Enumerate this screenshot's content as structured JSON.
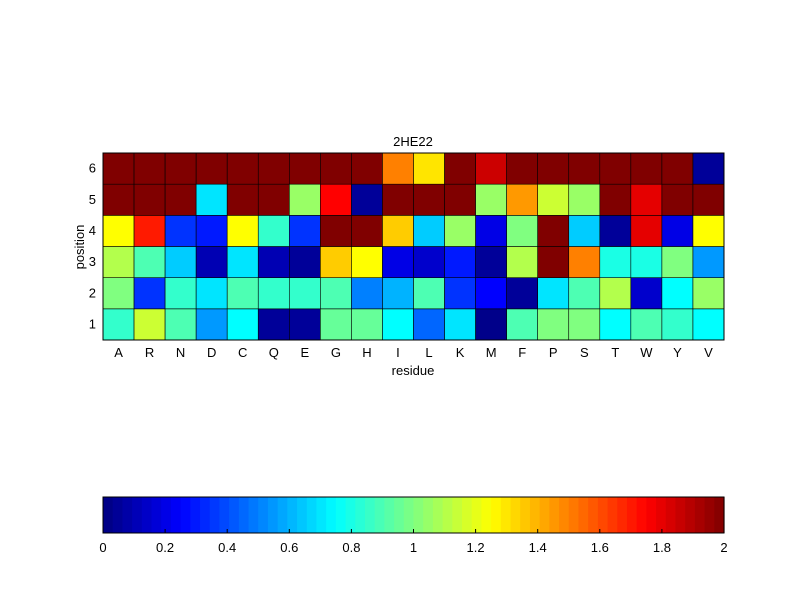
{
  "chart_data": {
    "type": "heatmap",
    "title": "2HE22",
    "xlabel": "residue",
    "ylabel": "position",
    "x_categories": [
      "A",
      "R",
      "N",
      "D",
      "C",
      "Q",
      "E",
      "G",
      "H",
      "I",
      "L",
      "K",
      "M",
      "F",
      "P",
      "S",
      "T",
      "W",
      "Y",
      "V"
    ],
    "y_categories": [
      "1",
      "2",
      "3",
      "4",
      "5",
      "6"
    ],
    "colormap": "jet",
    "clim": [
      0,
      2
    ],
    "grid": false,
    "values": [
      [
        0.85,
        1.15,
        0.9,
        0.55,
        0.75,
        0.05,
        0.05,
        0.95,
        0.95,
        0.75,
        0.45,
        0.7,
        0.02,
        0.9,
        1.0,
        1.0,
        0.75,
        0.9,
        0.85,
        0.75
      ],
      [
        1.0,
        0.35,
        0.85,
        0.7,
        0.9,
        0.85,
        0.85,
        0.9,
        0.5,
        0.6,
        0.9,
        0.35,
        0.25,
        0.05,
        0.7,
        0.9,
        1.1,
        0.15,
        0.75,
        1.05
      ],
      [
        1.1,
        0.9,
        0.65,
        0.1,
        0.7,
        0.1,
        0.05,
        1.35,
        1.25,
        0.2,
        0.15,
        0.3,
        0.05,
        1.1,
        2.0,
        1.5,
        0.8,
        0.8,
        1.0,
        0.55
      ],
      [
        1.25,
        1.7,
        0.35,
        0.3,
        1.25,
        0.85,
        0.35,
        2.0,
        2.0,
        1.35,
        0.65,
        1.05,
        0.2,
        1.0,
        2.0,
        0.65,
        0.05,
        1.8,
        0.2,
        1.25
      ],
      [
        2.0,
        2.0,
        2.0,
        0.7,
        2.0,
        2.0,
        1.05,
        1.75,
        0.05,
        2.0,
        2.0,
        2.0,
        1.05,
        1.45,
        1.15,
        1.05,
        2.0,
        1.8,
        2.0,
        2.0
      ],
      [
        2.0,
        2.0,
        2.0,
        2.0,
        2.0,
        2.0,
        2.0,
        2.0,
        2.0,
        1.5,
        1.3,
        2.0,
        1.85,
        2.0,
        2.0,
        2.0,
        2.0,
        2.0,
        2.0,
        0.05
      ]
    ],
    "colorbar": {
      "ticks": [
        0,
        0.2,
        0.4,
        0.6,
        0.8,
        1,
        1.2,
        1.4,
        1.6,
        1.8,
        2
      ],
      "tick_labels": [
        "0",
        "0.2",
        "0.4",
        "0.6",
        "0.8",
        "1",
        "1.2",
        "1.4",
        "1.6",
        "1.8",
        "2"
      ],
      "orientation": "horizontal",
      "position": "bottom"
    }
  }
}
